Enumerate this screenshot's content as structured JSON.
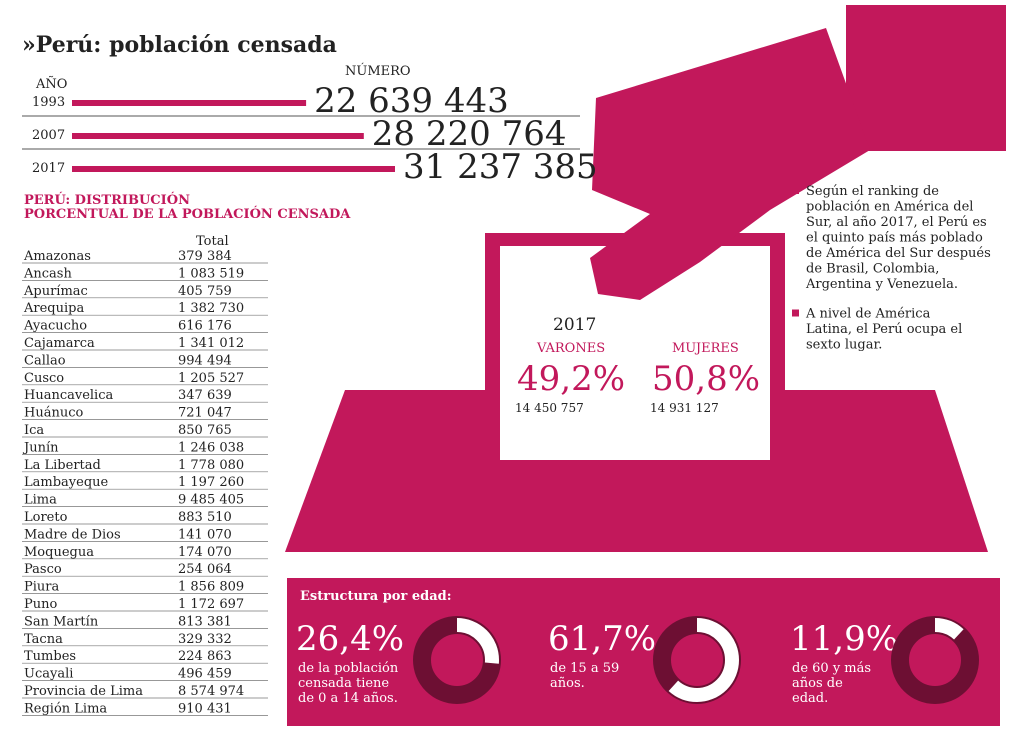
{
  "title": "»Perú: población censada",
  "census": {
    "year_header": "AÑO",
    "number_header": "NÚMERO",
    "rows": [
      {
        "year": "1993",
        "value": 22639443,
        "label": "22 639 443"
      },
      {
        "year": "2007",
        "value": 28220764,
        "label": "28 220 764"
      },
      {
        "year": "2017",
        "value": 31237385,
        "label": "31 237 385"
      }
    ]
  },
  "table": {
    "title_lines": [
      "PERÚ: DISTRIBUCIÓN",
      "PORCENTUAL DE LA POBLACIÓN CENSADA"
    ],
    "header": "Total",
    "rows": [
      [
        "Amazonas",
        "379 384"
      ],
      [
        "Ancash",
        "1 083 519"
      ],
      [
        "Apurímac",
        "405 759"
      ],
      [
        "Arequipa",
        "1 382 730"
      ],
      [
        "Ayacucho",
        "616 176"
      ],
      [
        "Cajamarca",
        "1 341 012"
      ],
      [
        "Callao",
        "994 494"
      ],
      [
        "Cusco",
        "1 205 527"
      ],
      [
        "Huancavelica",
        "347 639"
      ],
      [
        "Huánuco",
        "721 047"
      ],
      [
        "Ica",
        "850 765"
      ],
      [
        "Junín",
        "1 246 038"
      ],
      [
        "La Libertad",
        "1 778 080"
      ],
      [
        "Lambayeque",
        "1 197 260"
      ],
      [
        "Lima",
        "9 485 405"
      ],
      [
        "Loreto",
        "883 510"
      ],
      [
        "Madre de Dios",
        "141 070"
      ],
      [
        "Moquegua",
        "174 070"
      ],
      [
        "Pasco",
        "254 064"
      ],
      [
        "Piura",
        "1 856 809"
      ],
      [
        "Puno",
        "1 172 697"
      ],
      [
        "San Martín",
        "813 381"
      ],
      [
        "Tacna",
        "329 332"
      ],
      [
        "Tumbes",
        "224 863"
      ],
      [
        "Ucayali",
        "496 459"
      ],
      [
        "Provincia de Lima",
        "8 574 974"
      ],
      [
        "Región Lima",
        "910 431"
      ]
    ]
  },
  "gender": {
    "year": "2017",
    "men": {
      "label": "VARONES",
      "percent": "49,2%",
      "count": "14 450 757"
    },
    "women": {
      "label": "MUJERES",
      "percent": "50,8%",
      "count": "14 931 127"
    }
  },
  "notes": [
    [
      "Según el ranking de",
      "población en América del",
      "Sur, al año 2017, el Perú es",
      "el quinto país más poblado",
      "de América del Sur después",
      "de Brasil, Colombia,",
      "Argentina y Venezuela."
    ],
    [
      "A nivel de América",
      "Latina, el Perú ocupa el",
      "sexto lugar."
    ]
  ],
  "age": {
    "title": "Estructura por edad:",
    "groups": [
      {
        "value": 26.4,
        "label": "26,4%",
        "lines": [
          "de la población",
          "censada tiene",
          "de 0 a 14 años."
        ]
      },
      {
        "value": 61.7,
        "label": "61,7%",
        "lines": [
          "de 15 a 59",
          "años."
        ]
      },
      {
        "value": 11.9,
        "label": "11,9%",
        "lines": [
          "de 60 y más",
          "años de",
          "edad."
        ]
      }
    ]
  }
}
